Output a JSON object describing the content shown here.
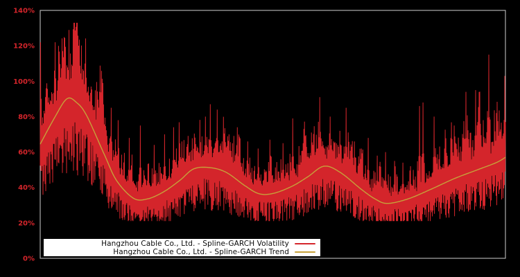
{
  "window": {
    "background": "#000000"
  },
  "chart_data": {
    "type": "line",
    "title": "",
    "grid": false,
    "plot_background": "#000000",
    "border_color": "#d0d0d0",
    "x_axis": {
      "label": "",
      "tick_labels": []
    },
    "y_axis": {
      "unit": "%",
      "min": 0,
      "max": 140,
      "tick_values": [
        0,
        20,
        40,
        60,
        80,
        100,
        120,
        140
      ],
      "tick_labels": [
        "0%",
        "20%",
        "40%",
        "60%",
        "80%",
        "100%",
        "120%",
        "140%"
      ],
      "label_color": "#d4252b"
    },
    "legend": {
      "position": "bottom-left-inside",
      "background": "#ffffff",
      "text_color": "#0a0a0a",
      "entries": [
        {
          "label": "Hangzhou Cable Co., Ltd. - Spline-GARCH Volatility",
          "color": "#d4252b"
        },
        {
          "label": "Hangzhou Cable Co., Ltd. - Spline-GARCH Trend",
          "color": "#c6a13a"
        }
      ]
    },
    "series": [
      {
        "name": "Hangzhou Cable Co., Ltd. - Spline-GARCH Volatility",
        "style": "noisy-spiky-line",
        "color": "#d4252b",
        "approximate": true,
        "value_range_pct": [
          21,
          122
        ],
        "major_spikes_xfrac_pct": [
          [
            0.0,
            122
          ],
          [
            0.012,
            96
          ],
          [
            0.031,
            122
          ],
          [
            0.04,
            111
          ],
          [
            0.048,
            117
          ],
          [
            0.061,
            100
          ],
          [
            0.072,
            97
          ],
          [
            0.089,
            93
          ],
          [
            0.098,
            102
          ],
          [
            0.109,
            97
          ],
          [
            0.127,
            94
          ],
          [
            0.134,
            99
          ],
          [
            0.152,
            85
          ],
          [
            0.167,
            78
          ],
          [
            0.191,
            68
          ],
          [
            0.215,
            75
          ],
          [
            0.244,
            64
          ],
          [
            0.267,
            70
          ],
          [
            0.286,
            74
          ],
          [
            0.304,
            66
          ],
          [
            0.332,
            62
          ],
          [
            0.355,
            80
          ],
          [
            0.365,
            87
          ],
          [
            0.38,
            84
          ],
          [
            0.405,
            70
          ],
          [
            0.423,
            74
          ],
          [
            0.446,
            66
          ],
          [
            0.468,
            62
          ],
          [
            0.495,
            58
          ],
          [
            0.522,
            65
          ],
          [
            0.543,
            79
          ],
          [
            0.566,
            73
          ],
          [
            0.583,
            71
          ],
          [
            0.601,
            91
          ],
          [
            0.623,
            80
          ],
          [
            0.644,
            72
          ],
          [
            0.657,
            85
          ],
          [
            0.675,
            66
          ],
          [
            0.69,
            62
          ],
          [
            0.705,
            68
          ],
          [
            0.724,
            58
          ],
          [
            0.742,
            60
          ],
          [
            0.762,
            55
          ],
          [
            0.779,
            54
          ],
          [
            0.796,
            52
          ],
          [
            0.815,
            86
          ],
          [
            0.823,
            88
          ],
          [
            0.846,
            80
          ],
          [
            0.869,
            62
          ],
          [
            0.89,
            75
          ],
          [
            0.909,
            68
          ],
          [
            0.915,
            94
          ],
          [
            0.936,
            95
          ],
          [
            0.952,
            78
          ],
          [
            0.964,
            115
          ],
          [
            0.981,
            82
          ],
          [
            0.998,
            103
          ]
        ]
      },
      {
        "name": "Hangzhou Cable Co., Ltd. - Spline-GARCH Trend",
        "style": "smooth-spline",
        "color": "#c6a13a",
        "points_xfrac_pct": [
          [
            0.0,
            64.5
          ],
          [
            0.03,
            79
          ],
          [
            0.057,
            90
          ],
          [
            0.078,
            88
          ],
          [
            0.1,
            80.5
          ],
          [
            0.138,
            58.5
          ],
          [
            0.164,
            44
          ],
          [
            0.2,
            34
          ],
          [
            0.23,
            33.5
          ],
          [
            0.265,
            37.5
          ],
          [
            0.3,
            44
          ],
          [
            0.33,
            50.5
          ],
          [
            0.365,
            51.2
          ],
          [
            0.4,
            48.5
          ],
          [
            0.44,
            41
          ],
          [
            0.47,
            36.5
          ],
          [
            0.5,
            36.6
          ],
          [
            0.54,
            40.5
          ],
          [
            0.575,
            46
          ],
          [
            0.61,
            52
          ],
          [
            0.645,
            48.5
          ],
          [
            0.69,
            39
          ],
          [
            0.72,
            33.5
          ],
          [
            0.746,
            31
          ],
          [
            0.79,
            33.5
          ],
          [
            0.84,
            39
          ],
          [
            0.89,
            45
          ],
          [
            0.94,
            50
          ],
          [
            0.98,
            54
          ],
          [
            1.0,
            57
          ]
        ]
      }
    ],
    "noise_seed": 1337
  }
}
